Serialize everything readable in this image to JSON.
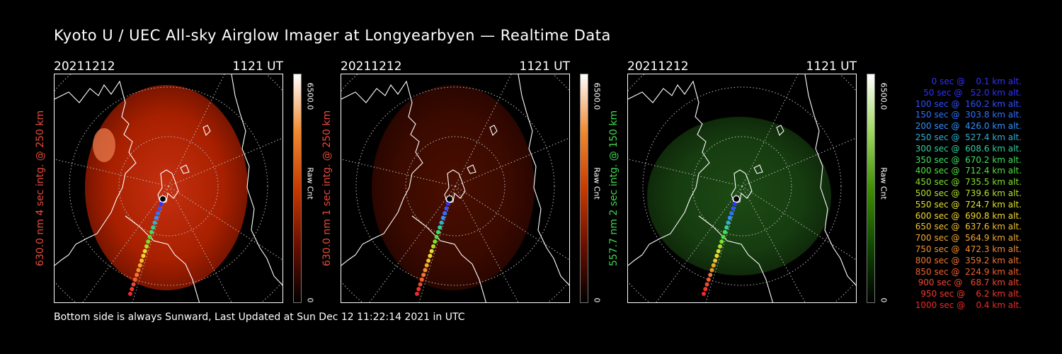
{
  "header": {
    "title": "Kyoto U / UEC All-sky Airglow Imager at Longyearbyen — Realtime Data"
  },
  "footer": {
    "text": "Bottom side is always Sunward, Last Updated at Sun Dec 12 11:22:14 2021 in UTC"
  },
  "panels": [
    {
      "date": "20211212",
      "time": "1121 UT",
      "ylabel": "630.0 nm 4 sec intg. @ 250 km",
      "label_color": "#e84a3a",
      "cbar_max": "6500.0",
      "cbar_min": "0",
      "cbar_unit": "Raw Cnt",
      "cbar_colors": [
        "#000000",
        "#6b0f00",
        "#c83a00",
        "#f08a30",
        "#ffffff"
      ],
      "glow": "bright"
    },
    {
      "date": "20211212",
      "time": "1121 UT",
      "ylabel": "630.0 nm 1 sec intg. @ 250 km",
      "label_color": "#e84a3a",
      "cbar_max": "6500.0",
      "cbar_min": "0",
      "cbar_unit": "Raw Cnt",
      "cbar_colors": [
        "#000000",
        "#6b0f00",
        "#c83a00",
        "#f08a30",
        "#ffffff"
      ],
      "glow": "dim"
    },
    {
      "date": "20211212",
      "time": "1121 UT",
      "ylabel": "557.7 nm 2 sec intg. @ 150 km",
      "label_color": "#3ed84e",
      "cbar_max": "6500.0",
      "cbar_min": "0",
      "cbar_unit": "Raw Cnt",
      "cbar_colors": [
        "#000000",
        "#0f4a00",
        "#3f9000",
        "#9fd860",
        "#ffffff"
      ],
      "glow": "green"
    }
  ],
  "legend": [
    {
      "text": "   0 sec @    0.1 km alt.",
      "color": "#3030ff"
    },
    {
      "text": "  50 sec @   52.0 km alt.",
      "color": "#3030ff"
    },
    {
      "text": " 100 sec @  160.2 km alt.",
      "color": "#3050ff"
    },
    {
      "text": " 150 sec @  303.8 km alt.",
      "color": "#3070ff"
    },
    {
      "text": " 200 sec @  426.0 km alt.",
      "color": "#3090ff"
    },
    {
      "text": " 250 sec @  527.4 km alt.",
      "color": "#30b0d0"
    },
    {
      "text": " 300 sec @  608.6 km alt.",
      "color": "#30d0a0"
    },
    {
      "text": " 350 sec @  670.2 km alt.",
      "color": "#40e060"
    },
    {
      "text": " 400 sec @  712.4 km alt.",
      "color": "#50e040"
    },
    {
      "text": " 450 sec @  735.5 km alt.",
      "color": "#80e030"
    },
    {
      "text": " 500 sec @  739.6 km alt.",
      "color": "#b0e030"
    },
    {
      "text": " 550 sec @  724.7 km alt.",
      "color": "#e0e030"
    },
    {
      "text": " 600 sec @  690.8 km alt.",
      "color": "#f0d830"
    },
    {
      "text": " 650 sec @  637.6 km alt.",
      "color": "#f0c030"
    },
    {
      "text": " 700 sec @  564.9 km alt.",
      "color": "#f0a830"
    },
    {
      "text": " 750 sec @  472.3 km alt.",
      "color": "#f09030"
    },
    {
      "text": " 800 sec @  359.2 km alt.",
      "color": "#f07830"
    },
    {
      "text": " 850 sec @  224.9 km alt.",
      "color": "#f06030"
    },
    {
      "text": " 900 sec @   68.7 km alt.",
      "color": "#f04830"
    },
    {
      "text": " 950 sec @    6.2 km alt.",
      "color": "#f03830"
    },
    {
      "text": "1000 sec @    0.4 km alt.",
      "color": "#f02828"
    }
  ]
}
